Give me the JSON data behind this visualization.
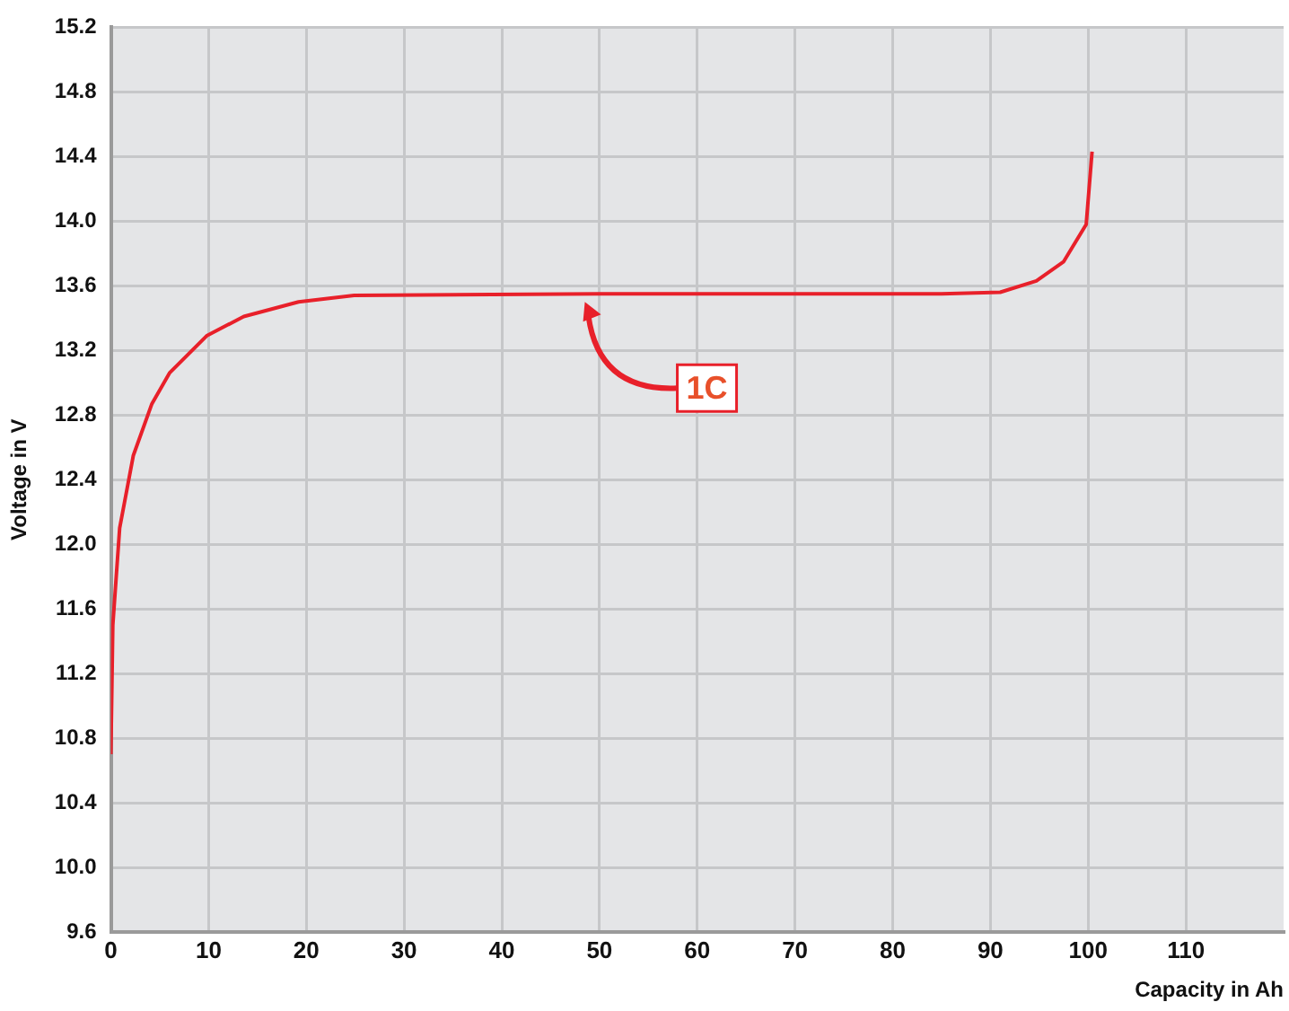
{
  "chart_data": {
    "type": "line",
    "xlabel": "Capacity in Ah",
    "ylabel": "Voltage in V",
    "xlim": [
      0,
      120
    ],
    "xticks": [
      0,
      10,
      20,
      30,
      40,
      50,
      60,
      70,
      80,
      90,
      100,
      110
    ],
    "ylim": [
      9.6,
      15.2
    ],
    "yticks": [
      9.6,
      {
        "value": 10,
        "label": "10.0"
      },
      10.4,
      10.8,
      11.2,
      11.6,
      {
        "value": 12,
        "label": "12.0"
      },
      12.4,
      12.8,
      13.2,
      13.6,
      {
        "value": 14,
        "label": "14.0"
      },
      14.4,
      14.8,
      15.2
    ],
    "grid": true,
    "legend": false,
    "marker": "none",
    "line_style": "solid",
    "series": [
      {
        "color": "#e8202a",
        "x": [
          0,
          0.2,
          0.9,
          2.3,
          4.2,
          6,
          9.8,
          13.6,
          19.2,
          24.9,
          50,
          85,
          91,
          94.7,
          97.5,
          99.8,
          100.4
        ],
        "values": [
          10.7,
          11.5,
          12.1,
          12.55,
          12.87,
          13.06,
          13.29,
          13.41,
          13.5,
          13.54,
          13.55,
          13.55,
          13.56,
          13.63,
          13.75,
          13.98,
          14.43
        ]
      }
    ],
    "annotations": [
      {
        "text": "1C",
        "x": 48.5,
        "y": 13.5
      }
    ]
  }
}
